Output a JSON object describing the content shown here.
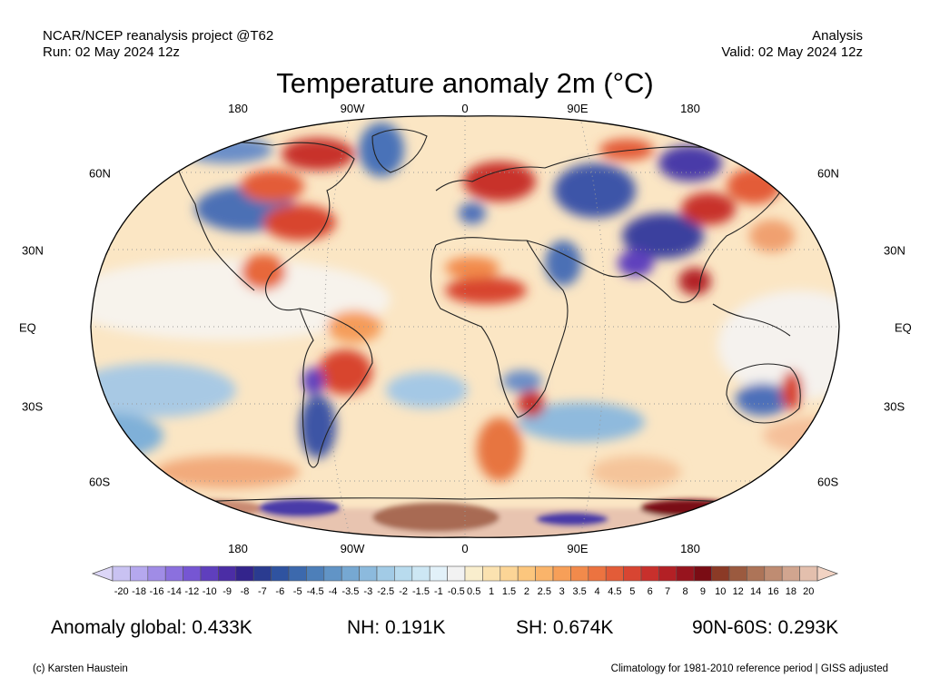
{
  "header": {
    "left_line1": "NCAR/NCEP reanalysis project @T62",
    "left_line2": "Run: 02 May 2024 12z",
    "right_line1": "Analysis",
    "right_line2": "Valid: 02 May 2024 12z"
  },
  "title": "Temperature anomaly 2m (°C)",
  "lon_labels_top": [
    "180",
    "90W",
    "0",
    "90E",
    "180"
  ],
  "lon_labels_bottom": [
    "180",
    "90W",
    "0",
    "90E",
    "180"
  ],
  "lat_labels_left": [
    "60N",
    "30N",
    "EQ",
    "30S",
    "60S"
  ],
  "lat_labels_right": [
    "60N",
    "30N",
    "EQ",
    "30S",
    "60S"
  ],
  "colorbar": {
    "labels": [
      "-20",
      "-18",
      "-16",
      "-14",
      "-12",
      "-10",
      "-9",
      "-8",
      "-7",
      "-6",
      "-5",
      "-4.5",
      "-4",
      "-3.5",
      "-3",
      "-2.5",
      "-2",
      "-1.5",
      "-1",
      "-0.5",
      "0.5",
      "1",
      "1.5",
      "2",
      "2.5",
      "3",
      "3.5",
      "4",
      "4.5",
      "5",
      "6",
      "7",
      "8",
      "9",
      "10",
      "12",
      "14",
      "16",
      "18",
      "20"
    ],
    "colors": [
      "#c9c2f2",
      "#b5a8ee",
      "#a08ce6",
      "#8b70de",
      "#7656d3",
      "#5f3fbd",
      "#4b2da5",
      "#33248c",
      "#2a3b90",
      "#2f53a0",
      "#3c69ad",
      "#4d7fb9",
      "#6194c6",
      "#76a8d2",
      "#8cbadd",
      "#a2cbe6",
      "#b8dbee",
      "#cde7f4",
      "#e2f1f9",
      "#f2f2f2",
      "#f9eecd",
      "#fbe2b0",
      "#fcd596",
      "#fcc67d",
      "#fab46a",
      "#f79f58",
      "#f28a4b",
      "#ec7340",
      "#e35c38",
      "#d84532",
      "#c8302c",
      "#b32025",
      "#97141e",
      "#7a0c14",
      "#8b3a26",
      "#9b5a3f",
      "#ad7458",
      "#bf8c72",
      "#d1a58f",
      "#e3bfad"
    ],
    "under_color": "#dcd6f7",
    "over_color": "#f2d3c3"
  },
  "stats": {
    "global": "Anomaly global: 0.433K",
    "nh": "NH: 0.191K",
    "sh": "SH: 0.674K",
    "arctic": "90N-60S: 0.293K"
  },
  "footer": {
    "left": "(c) Karsten Haustein",
    "right": "Climatology for 1981-2010 reference period | GISS adjusted"
  }
}
